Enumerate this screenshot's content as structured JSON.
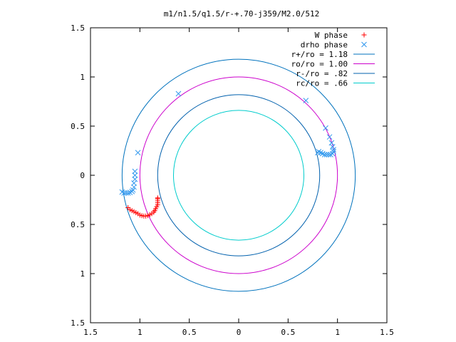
{
  "chart_data": {
    "type": "scatter",
    "title": "m1/n1.5/q1.5/r-+.70-j359/M2.0/512",
    "xlim": [
      -1.5,
      1.5
    ],
    "ylim": [
      -1.5,
      1.5
    ],
    "x_ticks": [
      -1.5,
      -1,
      -0.5,
      0,
      0.5,
      1,
      1.5
    ],
    "y_ticks": [
      -1.5,
      -1,
      -0.5,
      0,
      0.5,
      1,
      1.5
    ],
    "x_tick_labels": [
      "1.5",
      "1",
      "0.5",
      "0",
      "0.5",
      "1",
      "1.5"
    ],
    "y_tick_labels": [
      "1.5",
      "1",
      "0.5",
      "0",
      "0.5",
      "1",
      "1.5"
    ],
    "grid": false,
    "legend_position": "top-right",
    "series": [
      {
        "name": "W phase",
        "kind": "points",
        "marker": "+",
        "color": "#ff0000",
        "points": [
          [
            -1.12,
            -0.33
          ],
          [
            -1.1,
            -0.35
          ],
          [
            -1.08,
            -0.36
          ],
          [
            -1.06,
            -0.37
          ],
          [
            -1.04,
            -0.38
          ],
          [
            -1.02,
            -0.39
          ],
          [
            -1.0,
            -0.405
          ],
          [
            -0.98,
            -0.41
          ],
          [
            -0.96,
            -0.415
          ],
          [
            -0.94,
            -0.415
          ],
          [
            -0.92,
            -0.41
          ],
          [
            -0.9,
            -0.4
          ],
          [
            -0.88,
            -0.39
          ],
          [
            -0.86,
            -0.375
          ],
          [
            -0.85,
            -0.36
          ],
          [
            -0.84,
            -0.34
          ],
          [
            -0.83,
            -0.32
          ],
          [
            -0.82,
            -0.3
          ],
          [
            -0.82,
            -0.28
          ],
          [
            -0.82,
            -0.26
          ],
          [
            -0.82,
            -0.24
          ],
          [
            -0.82,
            -0.23
          ]
        ]
      },
      {
        "name": "drho phase",
        "kind": "points",
        "marker": "x",
        "color": "#3399ee",
        "points": [
          [
            -1.18,
            -0.17
          ],
          [
            -1.16,
            -0.18
          ],
          [
            -1.14,
            -0.18
          ],
          [
            -1.12,
            -0.18
          ],
          [
            -1.1,
            -0.175
          ],
          [
            -1.08,
            -0.165
          ],
          [
            -1.07,
            -0.15
          ],
          [
            -1.06,
            -0.12
          ],
          [
            -1.06,
            -0.08
          ],
          [
            -1.05,
            -0.04
          ],
          [
            -1.05,
            0.0
          ],
          [
            -1.05,
            0.04
          ],
          [
            -1.02,
            0.23
          ],
          [
            -0.61,
            0.83
          ],
          [
            0.68,
            0.76
          ],
          [
            0.88,
            0.48
          ],
          [
            0.92,
            0.39
          ],
          [
            0.94,
            0.33
          ],
          [
            0.95,
            0.29
          ],
          [
            0.96,
            0.26
          ],
          [
            0.96,
            0.24
          ],
          [
            0.95,
            0.22
          ],
          [
            0.93,
            0.21
          ],
          [
            0.91,
            0.21
          ],
          [
            0.89,
            0.21
          ],
          [
            0.87,
            0.21
          ],
          [
            0.85,
            0.22
          ],
          [
            0.83,
            0.23
          ],
          [
            0.81,
            0.24
          ],
          [
            0.8,
            0.23
          ]
        ]
      },
      {
        "name": "r+/ro = 1.18",
        "kind": "circle",
        "radius": 1.18,
        "color": "#0072bd"
      },
      {
        "name": "ro/ro = 1.00",
        "kind": "circle",
        "radius": 1.0,
        "color": "#cc00cc"
      },
      {
        "name": "r-/ro = .82",
        "kind": "circle",
        "radius": 0.82,
        "color": "#0060ad"
      },
      {
        "name": "rc/ro = .66",
        "kind": "circle",
        "radius": 0.66,
        "color": "#00cccc"
      }
    ]
  }
}
